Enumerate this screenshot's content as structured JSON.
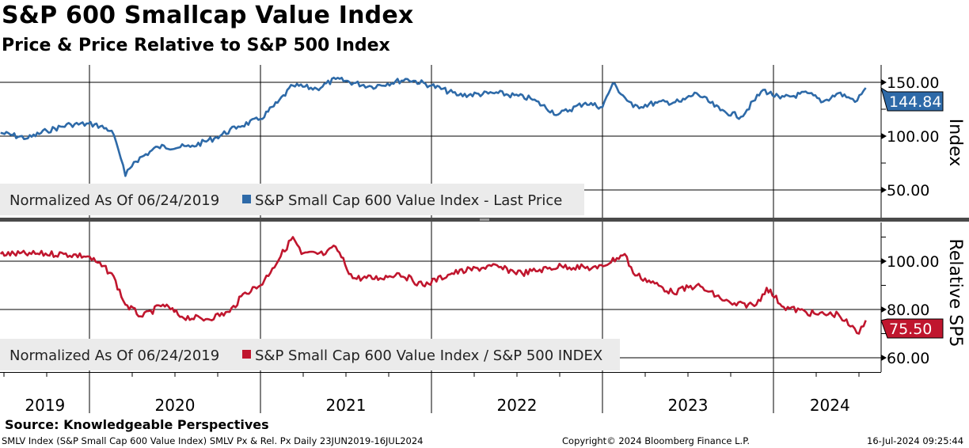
{
  "header": {
    "title": "S&P 600 Smallcap Value Index",
    "subtitle": "Price & Price Relative to S&P 500 Index"
  },
  "chart_data": [
    {
      "type": "line",
      "panel": "top",
      "ylabel": "Index",
      "ylim": [
        35,
        165
      ],
      "yticks": [
        {
          "v": 150,
          "label": "150.00"
        },
        {
          "v": 100,
          "label": "100.00"
        },
        {
          "v": 50,
          "label": "50.00"
        }
      ],
      "legend_text": "Normalized As Of 06/24/2019",
      "legend_series": "S&P Small Cap 600 Value Index - Last Price",
      "legend_position": "bottom-left",
      "color": "#2e6aa8",
      "last_value_label": "144.84",
      "last_value": 144.84,
      "series": {
        "name": "S&P Small Cap 600 Value Index - Last Price",
        "x": [
          2019.48,
          2019.64,
          2019.75,
          2019.89,
          2020.03,
          2020.13,
          2020.17,
          2020.21,
          2020.26,
          2020.4,
          2020.59,
          2020.73,
          2020.87,
          2021.0,
          2021.1,
          2021.19,
          2021.33,
          2021.44,
          2021.65,
          2021.86,
          2022.0,
          2022.16,
          2022.39,
          2022.58,
          2022.74,
          2022.9,
          2023.0,
          2023.06,
          2023.18,
          2023.32,
          2023.46,
          2023.55,
          2023.69,
          2023.81,
          2023.94,
          2024.04,
          2024.2,
          2024.29,
          2024.38,
          2024.45,
          2024.49,
          2024.54
        ],
        "y": [
          103,
          98,
          105,
          111,
          111,
          105,
          87,
          63,
          76,
          90,
          90,
          98,
          109,
          116,
          131,
          147,
          144,
          153,
          146,
          153,
          147,
          138,
          140,
          135,
          120,
          131,
          127,
          149,
          127,
          131,
          132,
          140,
          124,
          118,
          143,
          135,
          140,
          132,
          140,
          135,
          133,
          144.84
        ]
      }
    },
    {
      "type": "line",
      "panel": "bottom",
      "ylabel": "Relative SP5",
      "ylim": [
        54,
        116
      ],
      "yticks": [
        {
          "v": 100,
          "label": "100.00"
        },
        {
          "v": 80,
          "label": "80.00"
        },
        {
          "v": 60,
          "label": "60.00"
        }
      ],
      "legend_text": "Normalized As Of 06/24/2019",
      "legend_series": "S&P Small Cap 600 Value Index / S&P 500 INDEX",
      "legend_position": "bottom-left",
      "color": "#c0162e",
      "last_value_label": "75.50",
      "last_value": 75.5,
      "series": {
        "name": "S&P Small Cap 600 Value Index / S&P 500 INDEX",
        "x": [
          2019.48,
          2019.66,
          2019.85,
          2019.99,
          2020.13,
          2020.21,
          2020.31,
          2020.43,
          2020.54,
          2020.68,
          2020.82,
          2020.91,
          2021.0,
          2021.07,
          2021.19,
          2021.24,
          2021.38,
          2021.44,
          2021.54,
          2021.7,
          2021.81,
          2021.95,
          2022.12,
          2022.35,
          2022.53,
          2022.76,
          2022.97,
          2023.13,
          2023.18,
          2023.41,
          2023.55,
          2023.76,
          2023.9,
          2023.96,
          2024.06,
          2024.25,
          2024.38,
          2024.45,
          2024.5,
          2024.54
        ],
        "y": [
          103,
          103,
          103,
          102,
          95,
          82,
          77,
          82,
          77,
          76,
          79,
          87,
          90,
          97,
          110,
          103,
          103,
          106,
          93,
          93,
          95,
          90,
          95,
          98,
          95,
          98,
          97,
          103,
          95,
          87,
          90,
          82,
          82,
          89,
          81,
          78,
          78,
          73,
          70,
          75.5
        ]
      }
    }
  ],
  "x_axis": {
    "range": [
      2019.48,
      2024.65
    ],
    "year_labels": [
      {
        "label": "2019",
        "center": 2019.74
      },
      {
        "label": "2020",
        "center": 2020.5
      },
      {
        "label": "2021",
        "center": 2021.5
      },
      {
        "label": "2022",
        "center": 2022.5
      },
      {
        "label": "2023",
        "center": 2023.5
      },
      {
        "label": "2024",
        "center": 2024.33
      }
    ],
    "year_boundaries": [
      2020,
      2021,
      2022,
      2023,
      2024
    ]
  },
  "footer": {
    "source": "Source: Knowledgeable Perspectives",
    "description": "SMLV Index (S&P Small Cap 600 Value Index) SMLV Px & Rel. Px  Daily 23JUN2019-16JUL2024",
    "copyright": "Copyright© 2024 Bloomberg Finance L.P.",
    "timestamp": "16-Jul-2024 09:25:44"
  }
}
